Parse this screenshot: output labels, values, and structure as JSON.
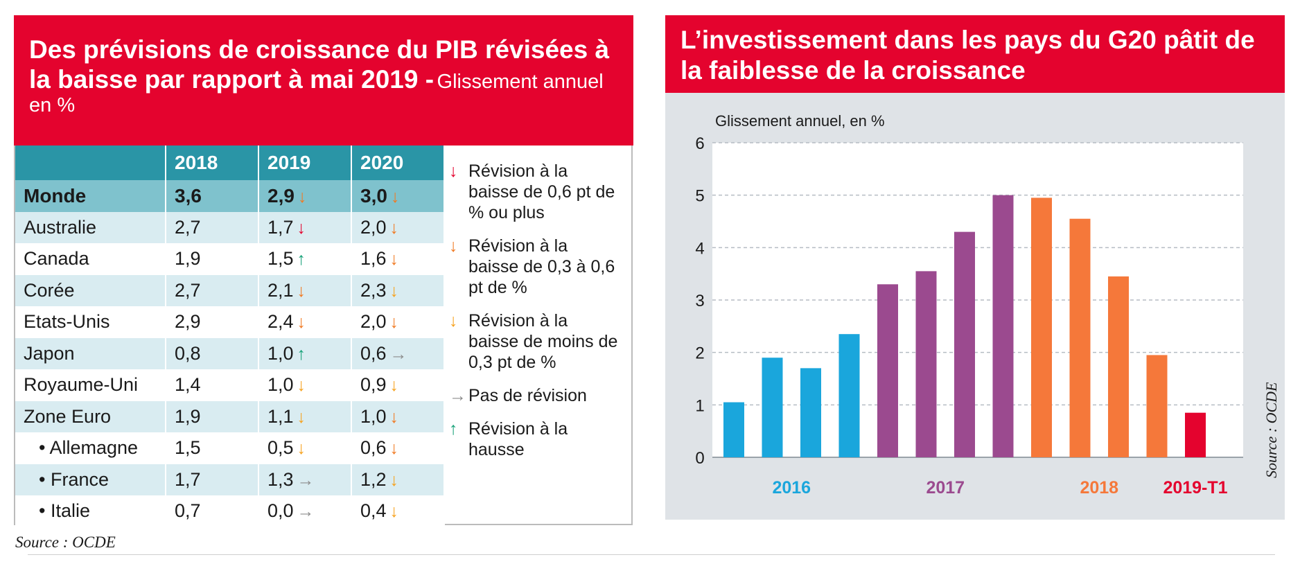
{
  "left": {
    "title_main": "Des prévisions de croissance du PIB révisées à la baisse par rapport à mai 2019 -",
    "title_sub": "Glissement annuel en %",
    "headers": [
      "",
      "2018",
      "2019",
      "2020"
    ],
    "rows": [
      {
        "name": "Monde",
        "sub": false,
        "v2018": "3,6",
        "v2019": "2,9",
        "a2019": "orange-down",
        "v2020": "3,0",
        "a2020": "orange-down"
      },
      {
        "name": "Australie",
        "sub": false,
        "v2018": "2,7",
        "v2019": "1,7",
        "a2019": "red-down",
        "v2020": "2,0",
        "a2020": "orange-down"
      },
      {
        "name": "Canada",
        "sub": false,
        "v2018": "1,9",
        "v2019": "1,5",
        "a2019": "green-up",
        "v2020": "1,6",
        "a2020": "orange-down"
      },
      {
        "name": "Corée",
        "sub": false,
        "v2018": "2,7",
        "v2019": "2,1",
        "a2019": "orange-down",
        "v2020": "2,3",
        "a2020": "yellow-down"
      },
      {
        "name": "Etats-Unis",
        "sub": false,
        "v2018": "2,9",
        "v2019": "2,4",
        "a2019": "orange-down",
        "v2020": "2,0",
        "a2020": "orange-down"
      },
      {
        "name": "Japon",
        "sub": false,
        "v2018": "0,8",
        "v2019": "1,0",
        "a2019": "green-up",
        "v2020": "0,6",
        "a2020": "grey-right"
      },
      {
        "name": "Royaume-Uni",
        "sub": false,
        "v2018": "1,4",
        "v2019": "1,0",
        "a2019": "yellow-down",
        "v2020": "0,9",
        "a2020": "yellow-down"
      },
      {
        "name": "Zone Euro",
        "sub": false,
        "v2018": "1,9",
        "v2019": "1,1",
        "a2019": "yellow-down",
        "v2020": "1,0",
        "a2020": "orange-down"
      },
      {
        "name": "• Allemagne",
        "sub": true,
        "v2018": "1,5",
        "v2019": "0,5",
        "a2019": "yellow-down",
        "v2020": "0,6",
        "a2020": "orange-down"
      },
      {
        "name": "• France",
        "sub": true,
        "v2018": "1,7",
        "v2019": "1,3",
        "a2019": "grey-right",
        "v2020": "1,2",
        "a2020": "yellow-down"
      },
      {
        "name": "• Italie",
        "sub": true,
        "v2018": "0,7",
        "v2019": "0,0",
        "a2019": "grey-right",
        "v2020": "0,4",
        "a2020": "yellow-down"
      }
    ],
    "legend": [
      {
        "icon": "red-down",
        "text": "Révision à la baisse de 0,6 pt de % ou plus"
      },
      {
        "icon": "orange-down",
        "text": "Révision à la baisse de 0,3 à 0,6 pt de %"
      },
      {
        "icon": "yellow-down",
        "text": "Révision à la baisse de moins de 0,3 pt de %"
      },
      {
        "icon": "grey-right",
        "text": "Pas de révision"
      },
      {
        "icon": "green-up",
        "text": "Révision à la hausse"
      }
    ],
    "arrow_styles": {
      "red-down": {
        "glyph": "↓",
        "color": "#e4032e"
      },
      "orange-down": {
        "glyph": "↓",
        "color": "#f07a23"
      },
      "yellow-down": {
        "glyph": "↓",
        "color": "#f6a21e"
      },
      "grey-right": {
        "glyph": "→",
        "color": "#8c8c8c"
      },
      "green-up": {
        "glyph": "↑",
        "color": "#1aa37a"
      }
    },
    "source": "Source : OCDE"
  },
  "right": {
    "title": "L’investissement dans les pays du G20 pâtit de la faiblesse de la croissance",
    "source": "Source : OCDE"
  },
  "chart_data": {
    "type": "bar",
    "title": "",
    "ylabel": "Glissement annuel, en %",
    "ylim": [
      0,
      6
    ],
    "yticks": [
      "0",
      "1",
      "2",
      "3",
      "4",
      "5",
      "6"
    ],
    "grid": true,
    "series": [
      {
        "group": "2016",
        "color": "#1aa6dc",
        "values": [
          1.05,
          1.9,
          1.7,
          2.35
        ]
      },
      {
        "group": "2017",
        "color": "#9b4a8f",
        "values": [
          3.3,
          3.55,
          4.3,
          5.0
        ]
      },
      {
        "group": "2018",
        "color": "#f5783a",
        "values": [
          4.95,
          4.55,
          3.45,
          1.95
        ]
      },
      {
        "group": "2019-T1",
        "color": "#e4032e",
        "values": [
          0.85
        ]
      }
    ]
  }
}
